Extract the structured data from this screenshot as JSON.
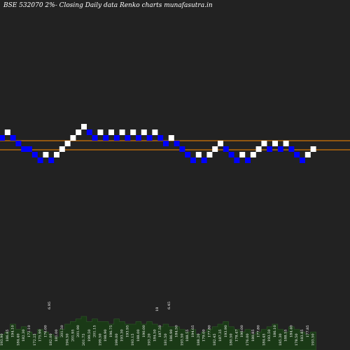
{
  "header": {
    "title": "BSE 532070  2%-  Closing Daily data  Renko  charts munafasutra.in"
  },
  "colors": {
    "background": "#222222",
    "up_brick": "#ffffff",
    "down_brick": "#0000ff",
    "reference_line": "#ff8c00",
    "volume": "#1a3a16"
  },
  "chart_data": {
    "type": "renko",
    "bricks": [
      {
        "dir": "down",
        "level": 0
      },
      {
        "dir": "up",
        "level": 1
      },
      {
        "dir": "down",
        "level": 0
      },
      {
        "dir": "down",
        "level": -1
      },
      {
        "dir": "down",
        "level": -2
      },
      {
        "dir": "down",
        "level": -2
      },
      {
        "dir": "down",
        "level": -3
      },
      {
        "dir": "down",
        "level": -4
      },
      {
        "dir": "up",
        "level": -3
      },
      {
        "dir": "down",
        "level": -4
      },
      {
        "dir": "up",
        "level": -3
      },
      {
        "dir": "up",
        "level": -2
      },
      {
        "dir": "up",
        "level": -1
      },
      {
        "dir": "up",
        "level": 0
      },
      {
        "dir": "up",
        "level": 1
      },
      {
        "dir": "up",
        "level": 2
      },
      {
        "dir": "down",
        "level": 1
      },
      {
        "dir": "down",
        "level": 0
      },
      {
        "dir": "up",
        "level": 1
      },
      {
        "dir": "down",
        "level": 0
      },
      {
        "dir": "up",
        "level": 1
      },
      {
        "dir": "down",
        "level": 0
      },
      {
        "dir": "up",
        "level": 1
      },
      {
        "dir": "down",
        "level": 0
      },
      {
        "dir": "up",
        "level": 1
      },
      {
        "dir": "down",
        "level": 0
      },
      {
        "dir": "up",
        "level": 1
      },
      {
        "dir": "down",
        "level": 0
      },
      {
        "dir": "up",
        "level": 1
      },
      {
        "dir": "down",
        "level": 0
      },
      {
        "dir": "down",
        "level": -1
      },
      {
        "dir": "up",
        "level": 0
      },
      {
        "dir": "down",
        "level": -1
      },
      {
        "dir": "down",
        "level": -2
      },
      {
        "dir": "down",
        "level": -3
      },
      {
        "dir": "down",
        "level": -4
      },
      {
        "dir": "up",
        "level": -3
      },
      {
        "dir": "down",
        "level": -4
      },
      {
        "dir": "up",
        "level": -3
      },
      {
        "dir": "up",
        "level": -2
      },
      {
        "dir": "up",
        "level": -1
      },
      {
        "dir": "down",
        "level": -2
      },
      {
        "dir": "down",
        "level": -3
      },
      {
        "dir": "down",
        "level": -4
      },
      {
        "dir": "up",
        "level": -3
      },
      {
        "dir": "down",
        "level": -4
      },
      {
        "dir": "up",
        "level": -3
      },
      {
        "dir": "up",
        "level": -2
      },
      {
        "dir": "up",
        "level": -1
      },
      {
        "dir": "down",
        "level": -2
      },
      {
        "dir": "up",
        "level": -1
      },
      {
        "dir": "down",
        "level": -2
      },
      {
        "dir": "up",
        "level": -1
      },
      {
        "dir": "down",
        "level": -2
      },
      {
        "dir": "down",
        "level": -3
      },
      {
        "dir": "down",
        "level": -4
      },
      {
        "dir": "up",
        "level": -3
      },
      {
        "dir": "up",
        "level": -2
      }
    ],
    "x_labels": [
      "193.90",
      "186.85",
      "194.10",
      "184.40",
      "182.30",
      "172.10",
      "172.25",
      "175.90",
      "176.00",
      "182.00",
      "181.00",
      "201.50",
      "194.50",
      "201.95",
      "201.90",
      "201.75",
      "199.50",
      "201.15",
      "199.50",
      "198.90",
      "196.75",
      "199.00",
      "193.30",
      "193.95",
      "193.15",
      "188.00",
      "190.00",
      "193.20",
      "184.50",
      "187.50",
      "181.50",
      "186.90",
      "184.50",
      "193.50",
      "188.55",
      "194.05",
      "188.20",
      "179.00",
      "177.80",
      "182.45",
      "187.35",
      "193.90",
      "180.50",
      "178.47",
      "190.00",
      "176.00",
      "180.85",
      "177.80",
      "184.45",
      "193.50",
      "186.10",
      "185.30",
      "188.55",
      "184.40",
      "178.50",
      "183.85",
      "177.85",
      "193.50"
    ],
    "extra_labels": [
      "6.95",
      "18",
      "6.45"
    ],
    "volume": [
      6,
      7,
      10,
      8,
      9,
      7,
      6,
      8,
      7,
      6,
      5,
      8,
      10,
      11,
      12,
      13,
      11,
      12,
      11,
      11,
      10,
      12,
      11,
      10,
      10,
      11,
      10,
      11,
      10,
      9,
      10,
      9,
      9,
      8,
      7,
      8,
      6,
      7,
      8,
      9,
      10,
      11,
      9,
      8,
      7,
      8,
      6,
      7,
      8,
      9,
      10,
      8,
      7,
      9,
      8,
      7,
      6,
      7
    ]
  }
}
